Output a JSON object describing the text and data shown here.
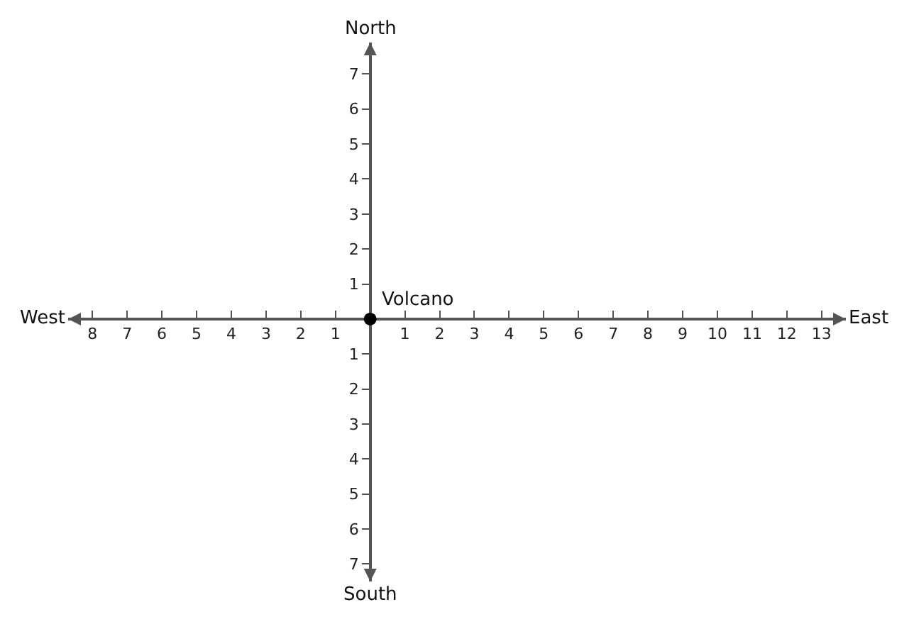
{
  "chart_data": {
    "type": "scatter",
    "marker": "circle",
    "series": [
      {
        "color": "#000000",
        "values": [
          0
        ],
        "x": [
          0
        ]
      }
    ],
    "annotations": [
      {
        "text": "Volcano",
        "x": 0,
        "y": 0
      },
      "North",
      "South",
      "West",
      "East"
    ],
    "xlim": [
      -8.7,
      13.7
    ],
    "ylim": [
      -7.5,
      7.9
    ],
    "xticks": [
      {
        "value": -8,
        "label": "8"
      },
      {
        "value": -7,
        "label": "7"
      },
      {
        "value": -6,
        "label": "6"
      },
      {
        "value": -5,
        "label": "5"
      },
      {
        "value": -4,
        "label": "4"
      },
      {
        "value": -3,
        "label": "3"
      },
      {
        "value": -2,
        "label": "2"
      },
      {
        "value": -1,
        "label": "1"
      },
      1,
      2,
      3,
      4,
      5,
      6,
      7,
      8,
      9,
      10,
      11,
      12,
      13
    ],
    "yticks": [
      {
        "value": -7,
        "label": "7"
      },
      {
        "value": -6,
        "label": "6"
      },
      {
        "value": -5,
        "label": "5"
      },
      {
        "value": -4,
        "label": "4"
      },
      {
        "value": -3,
        "label": "3"
      },
      {
        "value": -2,
        "label": "2"
      },
      {
        "value": -1,
        "label": "1"
      },
      1,
      2,
      3,
      4,
      5,
      6,
      7
    ]
  }
}
